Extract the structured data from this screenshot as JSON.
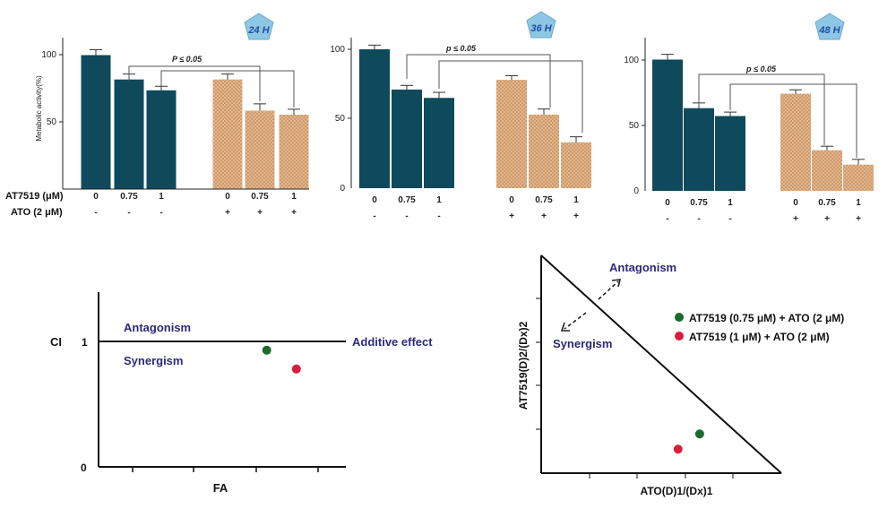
{
  "colors": {
    "control_bar": "#0f4a5c",
    "combo_bar": "#e3b58a",
    "combo_dot": "#b27c4b",
    "badge_fill": "#8ec7e3",
    "badge_text": "#1e4fa3",
    "navy_text": "#2b2a78",
    "green_point": "#1b6b2a",
    "red_point": "#d81e3a"
  },
  "chart_data": [
    {
      "type": "bar",
      "badge": "24 H",
      "ylabel": "Metabolic activity(%)",
      "yticks": [
        "50",
        "100"
      ],
      "ylim": [
        0,
        112
      ],
      "significance": "P ≤ 0.05",
      "row_labels": [
        "AT7519 (μM)",
        "ATO (2 μM)"
      ],
      "categories": [
        "0",
        "0.75",
        "1",
        "0",
        "0.75",
        "1"
      ],
      "ato_signs": [
        "-",
        "-",
        "-",
        "+",
        "+",
        "+"
      ],
      "values": [
        99,
        81,
        73,
        81,
        58,
        55
      ],
      "errors": [
        4,
        4,
        3,
        4,
        5,
        4
      ]
    },
    {
      "type": "bar",
      "badge": "36 H",
      "ylabel": "",
      "yticks": [
        "0",
        "50",
        "100"
      ],
      "ylim": [
        0,
        112
      ],
      "significance": "p ≤ 0.05",
      "row_labels": [],
      "categories": [
        "0",
        "0.75",
        "1",
        "0",
        "0.75",
        "1"
      ],
      "ato_signs": [
        "-",
        "-",
        "-",
        "+",
        "+",
        "+"
      ],
      "values": [
        100,
        71,
        65,
        78,
        53,
        33
      ],
      "errors": [
        3,
        3,
        4,
        3,
        4,
        4
      ]
    },
    {
      "type": "bar",
      "badge": "48 H",
      "ylabel": "",
      "yticks": [
        "0",
        "50",
        "100"
      ],
      "ylim": [
        0,
        112
      ],
      "significance": "p ≤ 0.05",
      "row_labels": [],
      "categories": [
        "0",
        "0.75",
        "1",
        "0",
        "0.75",
        "1"
      ],
      "ato_signs": [
        "-",
        "-",
        "-",
        "+",
        "+",
        "+"
      ],
      "values": [
        100,
        63,
        57,
        74,
        31,
        20
      ],
      "errors": [
        4,
        4,
        3,
        3,
        3,
        4
      ]
    },
    {
      "type": "scatter",
      "ylabel": "CI",
      "xlabel": "FA",
      "yticks": [
        "0",
        "1"
      ],
      "reference_line": 1,
      "annotations": {
        "above": "Antagonism",
        "below": "Synergism",
        "line": "Additive effect"
      },
      "points": [
        {
          "x": 0.68,
          "y": 0.93,
          "color": "green"
        },
        {
          "x": 0.8,
          "y": 0.78,
          "color": "red"
        }
      ]
    },
    {
      "type": "scatter",
      "ylabel": "AT7519(D)2/(Dx)2",
      "xlabel": "ATO(D)1/(Dx)1",
      "annotations": {
        "antagonism": "Antagonism",
        "synergism": "Synergism"
      },
      "legend": [
        {
          "label": "AT7519 (0.75 μM) + ATO (2 μM)",
          "color": "green"
        },
        {
          "label": "AT7519 (1 μM) + ATO (2 μM)",
          "color": "red"
        }
      ],
      "points": [
        {
          "x": 0.66,
          "y": 0.18,
          "color": "green"
        },
        {
          "x": 0.57,
          "y": 0.11,
          "color": "red"
        }
      ]
    }
  ]
}
